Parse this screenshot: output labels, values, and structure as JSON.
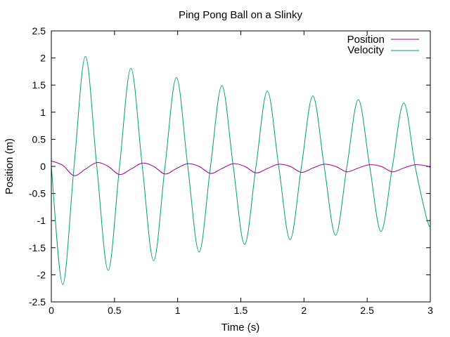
{
  "chart_data": {
    "type": "line",
    "title": "Ping Pong Ball on a Slinky",
    "xlabel": "Time (s)",
    "ylabel": "Position (m)",
    "xlim": [
      0,
      3
    ],
    "ylim": [
      -2.5,
      2.5
    ],
    "xticks": [
      "0",
      "0.5",
      "1",
      "1.5",
      "2",
      "2.5",
      "3"
    ],
    "yticks": [
      "-2.5",
      "-2",
      "-1.5",
      "-1",
      "-0.5",
      "0",
      "0.5",
      "1",
      "1.5",
      "2",
      "2.5"
    ],
    "grid": false,
    "legend_position": "top-right",
    "series": [
      {
        "name": "Position",
        "color": "#990099",
        "x": [
          0,
          0.09,
          0.18,
          0.27,
          0.36,
          0.45,
          0.54,
          0.63,
          0.72,
          0.81,
          0.9,
          0.99,
          1.08,
          1.17,
          1.26,
          1.35,
          1.44,
          1.53,
          1.62,
          1.71,
          1.8,
          1.89,
          1.98,
          2.07,
          2.16,
          2.25,
          2.34,
          2.43,
          2.52,
          2.61,
          2.7,
          2.79,
          2.88,
          2.97,
          3.0
        ],
        "y": [
          0.1,
          0.02,
          -0.17,
          -0.05,
          0.07,
          0.0,
          -0.15,
          -0.05,
          0.06,
          0.0,
          -0.14,
          -0.04,
          0.05,
          0.0,
          -0.13,
          -0.04,
          0.05,
          0.0,
          -0.12,
          -0.04,
          0.04,
          0.0,
          -0.11,
          -0.03,
          0.04,
          0.0,
          -0.1,
          -0.03,
          0.03,
          0.0,
          -0.1,
          -0.03,
          0.03,
          0.01,
          -0.02
        ]
      },
      {
        "name": "Velocity",
        "color": "#009e73",
        "x": [
          0,
          0.09,
          0.18,
          0.27,
          0.36,
          0.45,
          0.54,
          0.63,
          0.72,
          0.81,
          0.9,
          0.99,
          1.08,
          1.17,
          1.26,
          1.35,
          1.44,
          1.53,
          1.62,
          1.71,
          1.8,
          1.89,
          1.98,
          2.07,
          2.16,
          2.25,
          2.34,
          2.43,
          2.52,
          2.61,
          2.7,
          2.79,
          2.88,
          2.97,
          3.0
        ],
        "y": [
          0.0,
          -2.18,
          0.0,
          2.03,
          0.0,
          -1.92,
          0.0,
          1.81,
          0.0,
          -1.74,
          0.0,
          1.64,
          0.0,
          -1.58,
          0.0,
          1.49,
          0.0,
          -1.44,
          0.0,
          1.39,
          0.0,
          -1.35,
          0.0,
          1.3,
          0.0,
          -1.27,
          0.0,
          1.23,
          0.0,
          -1.2,
          0.0,
          1.17,
          0.0,
          -0.95,
          -1.12
        ]
      }
    ]
  }
}
